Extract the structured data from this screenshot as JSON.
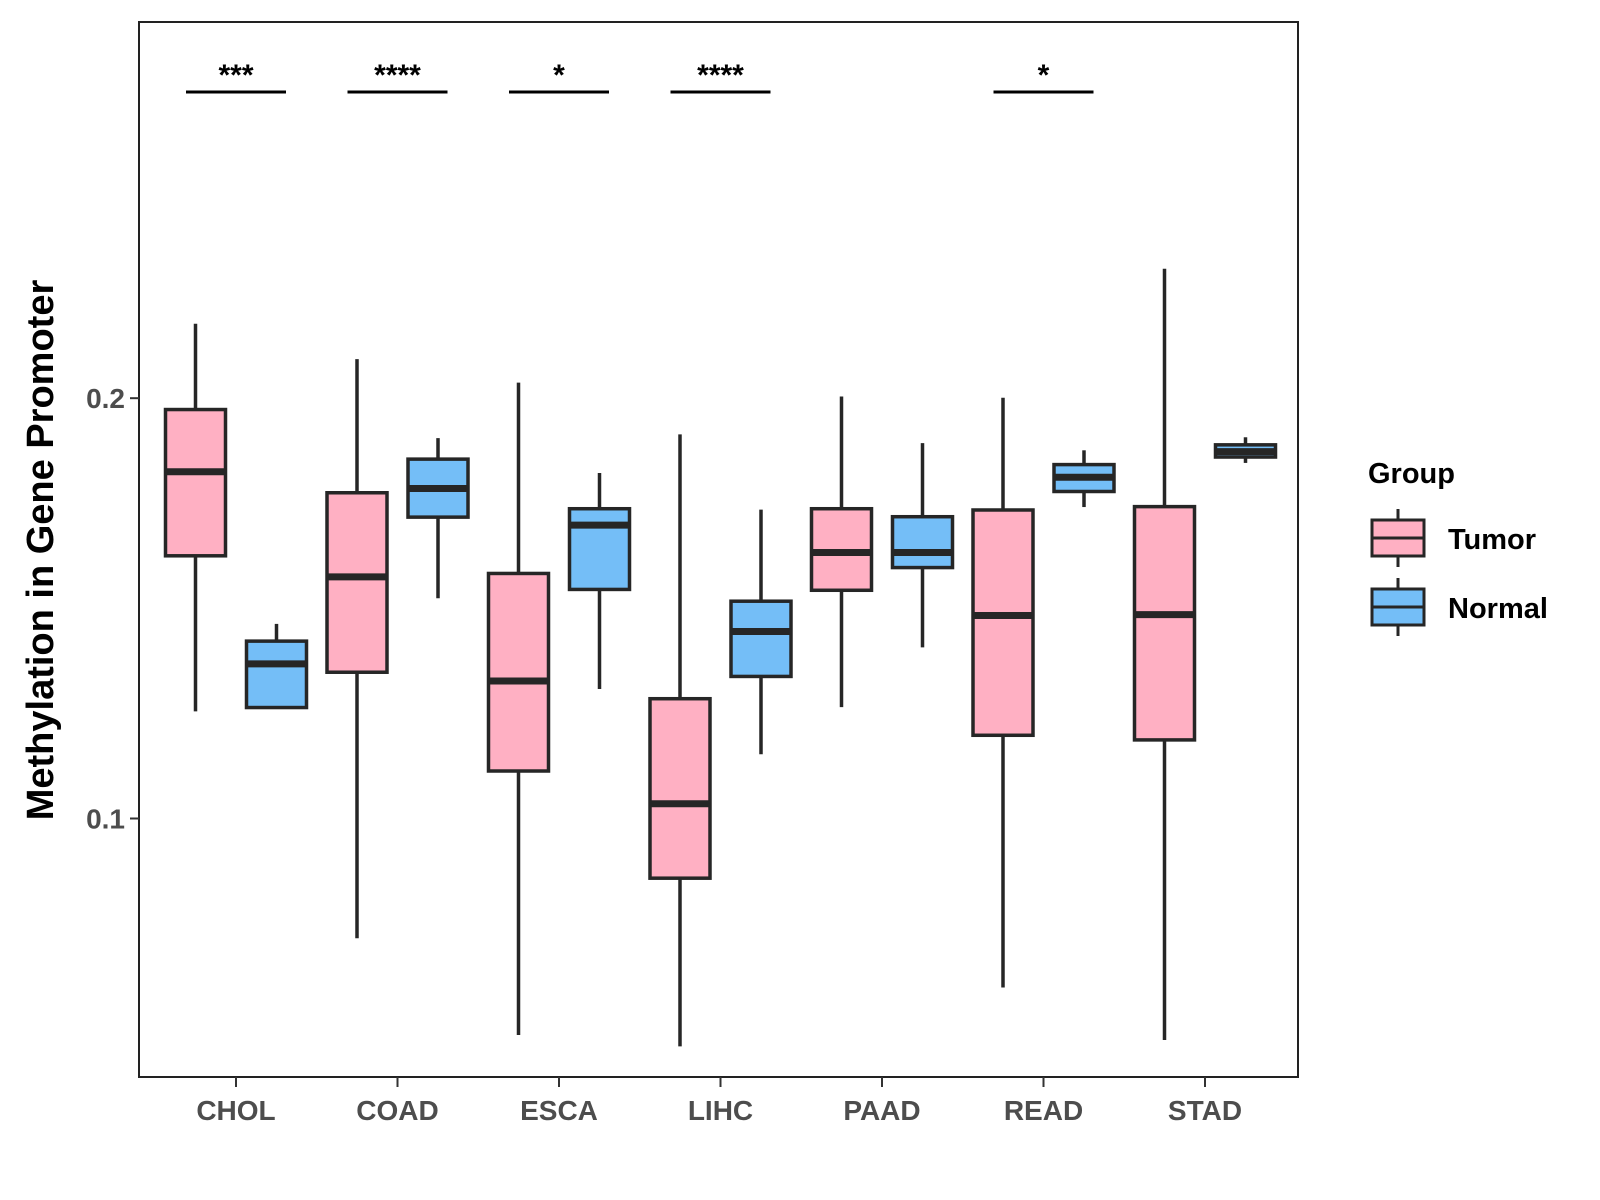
{
  "chart_data": {
    "type": "boxplot",
    "title": "",
    "xlabel": "",
    "ylabel": "Methylation in Gene Promoter",
    "ylim": [
      0.0385,
      0.2895
    ],
    "y_ticks": [
      0.1,
      0.2
    ],
    "y_tick_labels": [
      "0.1",
      "0.2"
    ],
    "categories": [
      "CHOL",
      "COAD",
      "ESCA",
      "LIHC",
      "PAAD",
      "READ",
      "STAD"
    ],
    "legend": {
      "title": "Group",
      "position": "right",
      "entries": [
        {
          "name": "Tumor",
          "color": "#FFB0C3"
        },
        {
          "name": "Normal",
          "color": "#74BEF7"
        }
      ]
    },
    "series": [
      {
        "name": "Tumor",
        "color": "#FFB0C3",
        "boxes": [
          {
            "min": 0.1255,
            "q1": 0.1625,
            "median": 0.1825,
            "q3": 0.1973,
            "max": 0.2177
          },
          {
            "min": 0.0715,
            "q1": 0.1348,
            "median": 0.1575,
            "q3": 0.1775,
            "max": 0.2093
          },
          {
            "min": 0.0485,
            "q1": 0.1113,
            "median": 0.1327,
            "q3": 0.1583,
            "max": 0.2037
          },
          {
            "min": 0.0458,
            "q1": 0.0858,
            "median": 0.1035,
            "q3": 0.1285,
            "max": 0.1914
          },
          {
            "min": 0.1265,
            "q1": 0.1543,
            "median": 0.1633,
            "q3": 0.1737,
            "max": 0.2004
          },
          {
            "min": 0.0598,
            "q1": 0.1198,
            "median": 0.1483,
            "q3": 0.1734,
            "max": 0.2001
          },
          {
            "min": 0.0473,
            "q1": 0.1187,
            "median": 0.1485,
            "q3": 0.1742,
            "max": 0.2308
          }
        ]
      },
      {
        "name": "Normal",
        "color": "#74BEF7",
        "boxes": [
          {
            "min": 0.1262,
            "q1": 0.1264,
            "median": 0.1368,
            "q3": 0.1422,
            "max": 0.1463
          },
          {
            "min": 0.1524,
            "q1": 0.1717,
            "median": 0.1785,
            "q3": 0.1855,
            "max": 0.1905
          },
          {
            "min": 0.1308,
            "q1": 0.1545,
            "median": 0.1698,
            "q3": 0.1737,
            "max": 0.1822
          },
          {
            "min": 0.1153,
            "q1": 0.1338,
            "median": 0.1445,
            "q3": 0.1517,
            "max": 0.1735
          },
          {
            "min": 0.1407,
            "q1": 0.1597,
            "median": 0.1633,
            "q3": 0.1718,
            "max": 0.1893
          },
          {
            "min": 0.1741,
            "q1": 0.1778,
            "median": 0.1812,
            "q3": 0.1842,
            "max": 0.1876
          },
          {
            "min": 0.1846,
            "q1": 0.186,
            "median": 0.1873,
            "q3": 0.1889,
            "max": 0.1907
          }
        ]
      }
    ],
    "significance": [
      {
        "category": "CHOL",
        "label": "***"
      },
      {
        "category": "COAD",
        "label": "****"
      },
      {
        "category": "ESCA",
        "label": "*"
      },
      {
        "category": "LIHC",
        "label": "****"
      },
      {
        "category": "READ",
        "label": "*"
      }
    ],
    "style": {
      "stroke_color": "#262626",
      "panel_border_color": "#222222",
      "tick_label_color": "#4d4d4d"
    }
  }
}
